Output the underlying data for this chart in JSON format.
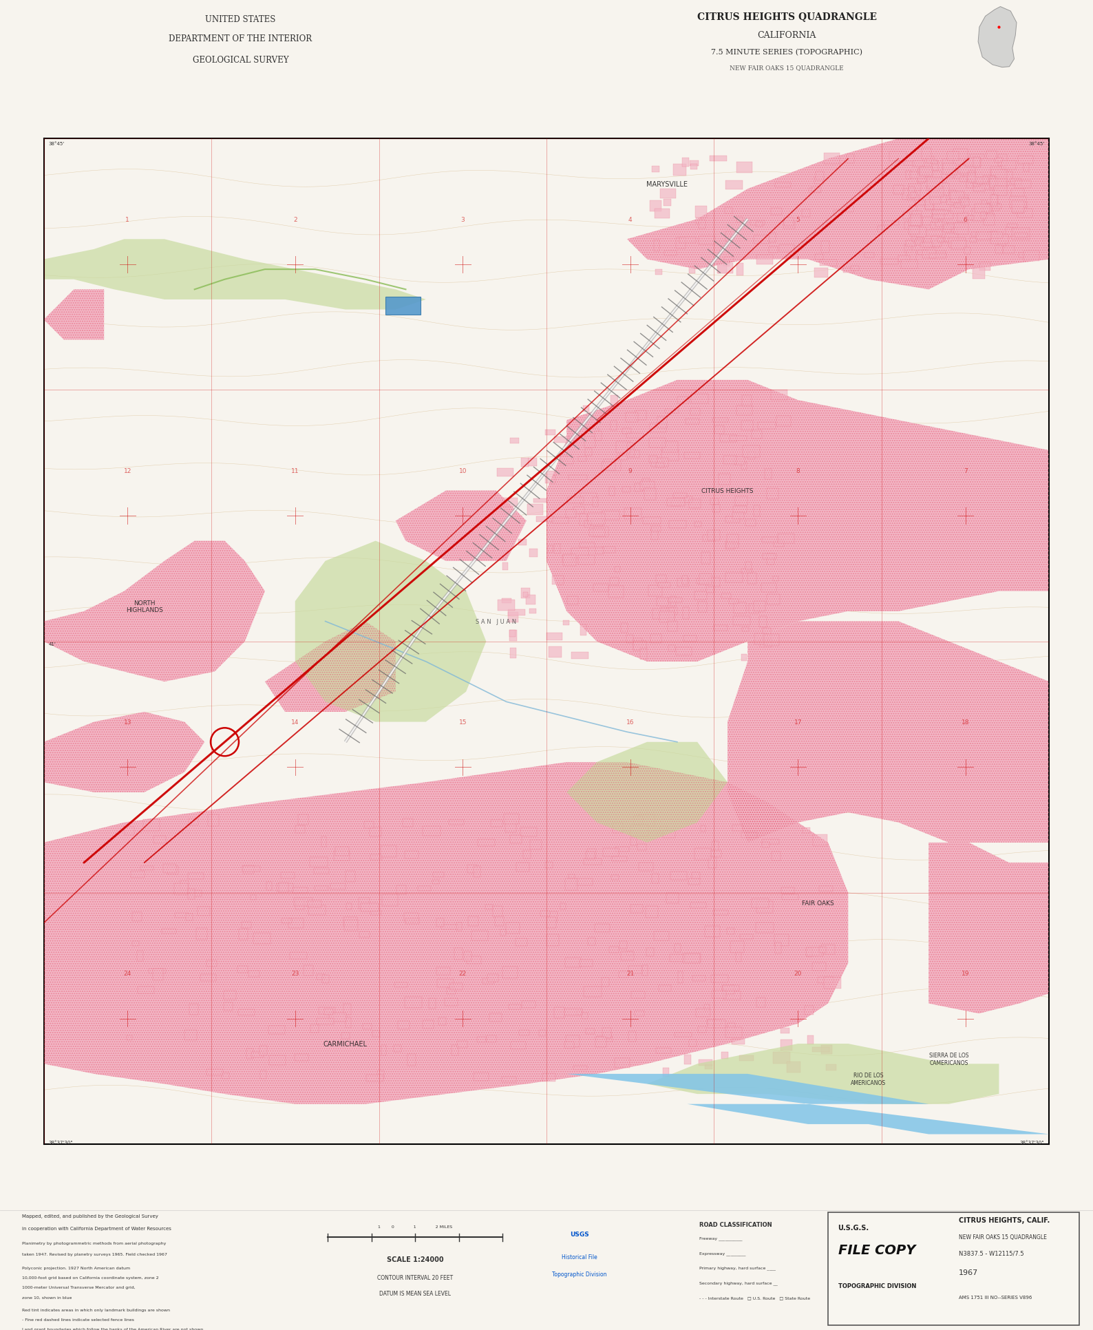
{
  "title_left_line1": "UNITED STATES",
  "title_left_line2": "DEPARTMENT OF THE INTERIOR",
  "title_left_line3": "GEOLOGICAL SURVEY",
  "title_right_line1": "CITRUS HEIGHTS QUADRANGLE",
  "title_right_line2": "CALIFORNIA",
  "title_right_line3": "7.5 MINUTE SERIES (TOPOGRAPHIC)",
  "title_right_line4": "NEW FAIR OAKS 15 QUADRANGLE",
  "stamp_title": "CITRUS HEIGHTS, CALIF.",
  "stamp_sub": "NEW FAIR OAKS 15 QUADRANGLE",
  "stamp_series": "N3837.5 - W12115/7.5",
  "stamp_year": "1967",
  "stamp_number": "AMS 1751 III NO--SERIES V896",
  "contour_interval_text": "CONTOUR INTERVAL 20 FEET",
  "datum_text": "DATUM IS MEAN SEA LEVEL",
  "scale_text": "SCALE 1:24000",
  "map_bg_color": "#f7f4ee",
  "urban_fill_color": "#f2b8c6",
  "urban_hatch_color": "#e8607a",
  "water_color": "#80c4e8",
  "forest_color": "#c8dba0",
  "creek_color": "#80b8d8",
  "red_line_color": "#cc0000",
  "gray_rail_color": "#999999",
  "topo_color": "#c8a060",
  "border_color": "#000000",
  "fig_bg": "#f7f4ee",
  "section_line_color": "#cc0000",
  "coord_line_color": "#cc0000"
}
